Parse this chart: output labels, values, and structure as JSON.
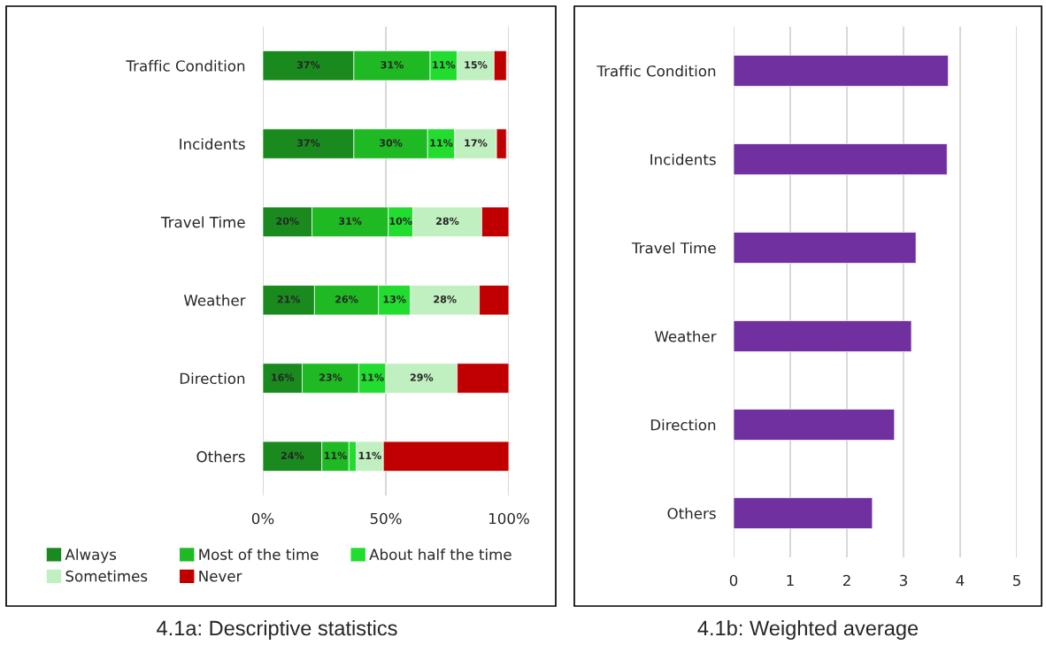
{
  "chart_data": [
    {
      "type": "bar",
      "orientation": "horizontal",
      "stacked": true,
      "title": "4.1a: Descriptive statistics",
      "categories": [
        "Traffic Condition",
        "Incidents",
        "Travel Time",
        "Weather",
        "Direction",
        "Others"
      ],
      "series": [
        {
          "name": "Always",
          "color": "#1a8a1f",
          "values": [
            37,
            37,
            20,
            21,
            16,
            24
          ],
          "value_labels": [
            "37%",
            "37%",
            "20%",
            "21%",
            "16%",
            "24%"
          ]
        },
        {
          "name": "Most of the time",
          "color": "#1fb924",
          "values": [
            31,
            30,
            31,
            26,
            23,
            11
          ],
          "value_labels": [
            "31%",
            "30%",
            "31%",
            "26%",
            "23%",
            "11%"
          ]
        },
        {
          "name": "About half the time",
          "color": "#22dd2f",
          "values": [
            11,
            11,
            10,
            13,
            11,
            3
          ],
          "value_labels": [
            "11%",
            "11%",
            "10%",
            "13%",
            "11%",
            null
          ]
        },
        {
          "name": "Sometimes",
          "color": "#c0efc0",
          "values": [
            15,
            17,
            28,
            28,
            29,
            11
          ],
          "value_labels": [
            "15%",
            "17%",
            "28%",
            "28%",
            "29%",
            "11%"
          ]
        },
        {
          "name": "Never",
          "color": "#c00000",
          "values": [
            5,
            4,
            11,
            12,
            21,
            51
          ],
          "value_labels": [
            null,
            null,
            null,
            null,
            null,
            null
          ]
        }
      ],
      "xlim": [
        0,
        100
      ],
      "xticks": [
        {
          "value": 0,
          "label": "0%"
        },
        {
          "value": 50,
          "label": "50%"
        },
        {
          "value": 100,
          "label": "100%"
        }
      ],
      "grid": "x",
      "legend": "bottom"
    },
    {
      "type": "bar",
      "orientation": "horizontal",
      "title": "4.1b: Weighted average",
      "categories": [
        "Traffic Condition",
        "Incidents",
        "Travel Time",
        "Weather",
        "Direction",
        "Others"
      ],
      "values": [
        3.79,
        3.77,
        3.22,
        3.14,
        2.84,
        2.45
      ],
      "color": "#7030a0",
      "xlim": [
        0,
        5
      ],
      "xticks": [
        0,
        1,
        2,
        3,
        4,
        5
      ],
      "grid": "x",
      "legend": false
    }
  ]
}
